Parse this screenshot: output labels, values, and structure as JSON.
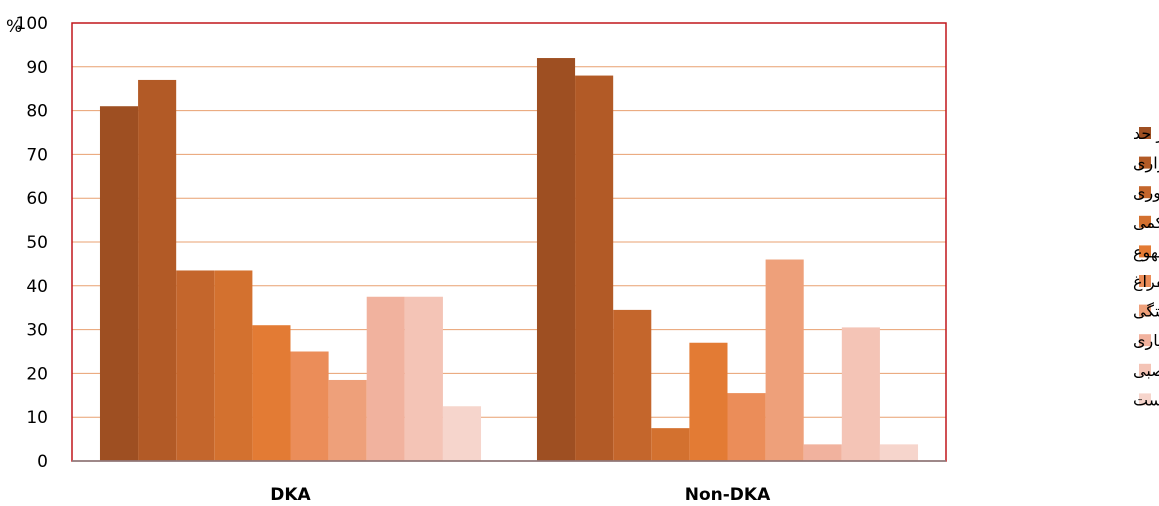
{
  "chart_data": {
    "type": "bar",
    "categories": [
      "DKA",
      "Non-DKA"
    ],
    "ylabel": "%",
    "ylim": [
      0,
      100
    ],
    "yticks": [
      0,
      10,
      20,
      30,
      40,
      50,
      60,
      70,
      80,
      90,
      100
    ],
    "grid": true,
    "legend_position": "right",
    "series": [
      {
        "name": "تشنگی بیش از حد",
        "color": "#9E4F22",
        "values": [
          81,
          92
        ]
      },
      {
        "name": "پرادراری",
        "color": "#B25A26",
        "values": [
          87,
          88
        ]
      },
      {
        "name": "پرخوری",
        "color": "#C4662C",
        "values": [
          43.5,
          34.5
        ]
      },
      {
        "name": "درد شکمی",
        "color": "#D3712F",
        "values": [
          43.5,
          7.5
        ]
      },
      {
        "name": "احساس تهوع",
        "color": "#E37B34",
        "values": [
          31,
          27
        ]
      },
      {
        "name": "استفراغ",
        "color": "#EB8D59",
        "values": [
          25,
          15.5
        ]
      },
      {
        "name": "خستگی",
        "color": "#EEA07A",
        "values": [
          18.5,
          46
        ]
      },
      {
        "name": "اختلال هوشیاری",
        "color": "#F1B29E",
        "values": [
          37.5,
          3.8
        ]
      },
      {
        "name": "کم اشتهایی عصبی",
        "color": "#F4C4B6",
        "values": [
          37.5,
          30.5
        ]
      },
      {
        "name": "یبوست",
        "color": "#F6D5CC",
        "values": [
          12.5,
          3.8
        ]
      }
    ]
  }
}
